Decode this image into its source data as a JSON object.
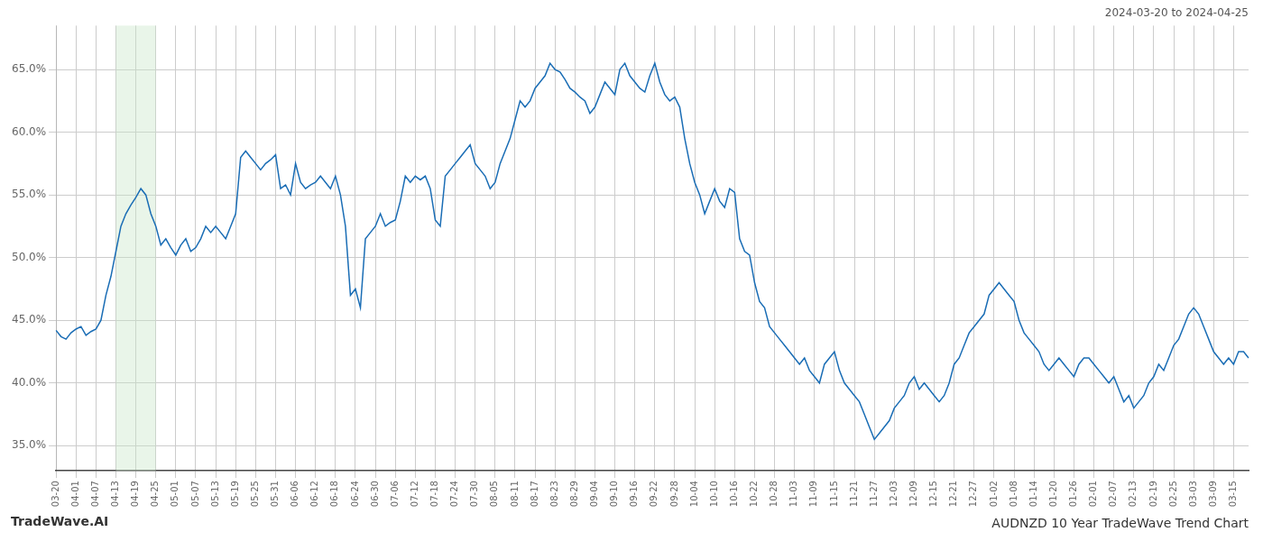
{
  "chart_data": {
    "type": "line",
    "title": "AUDNZD 10 Year TradeWave Trend Chart",
    "subtitle": "2024-03-20 to 2024-04-25",
    "annotations": [
      "TradeWave.AI"
    ],
    "color": "#1a6db5",
    "grid": true,
    "ylim": [
      33.0,
      68.5
    ],
    "yticks": [
      {
        "value": 35.0,
        "label": "35.0%"
      },
      {
        "value": 40.0,
        "label": "40.0%"
      },
      {
        "value": 45.0,
        "label": "45.0%"
      },
      {
        "value": 50.0,
        "label": "50.0%"
      },
      {
        "value": 55.0,
        "label": "55.0%"
      },
      {
        "value": 60.0,
        "label": "60.0%"
      },
      {
        "value": 65.0,
        "label": "65.0%"
      }
    ],
    "shaded_region": {
      "from": "04-13",
      "to": "04-25",
      "color": "#c8e6c9"
    },
    "categories": [
      "03-20",
      null,
      null,
      null,
      "04-01",
      null,
      null,
      null,
      "04-07",
      null,
      null,
      null,
      "04-13",
      null,
      null,
      null,
      "04-19",
      null,
      null,
      null,
      "04-25",
      null,
      null,
      null,
      "05-01",
      null,
      null,
      null,
      "05-07",
      null,
      null,
      null,
      "05-13",
      null,
      null,
      null,
      "05-19",
      null,
      null,
      null,
      "05-25",
      null,
      null,
      null,
      "05-31",
      null,
      null,
      null,
      "06-06",
      null,
      null,
      null,
      "06-12",
      null,
      null,
      null,
      "06-18",
      null,
      null,
      null,
      "06-24",
      null,
      null,
      null,
      "06-30",
      null,
      null,
      null,
      "07-06",
      null,
      null,
      null,
      "07-12",
      null,
      null,
      null,
      "07-18",
      null,
      null,
      null,
      "07-24",
      null,
      null,
      null,
      "07-30",
      null,
      null,
      null,
      "08-05",
      null,
      null,
      null,
      "08-11",
      null,
      null,
      null,
      "08-17",
      null,
      null,
      null,
      "08-23",
      null,
      null,
      null,
      "08-29",
      null,
      null,
      null,
      "09-04",
      null,
      null,
      null,
      "09-10",
      null,
      null,
      null,
      "09-16",
      null,
      null,
      null,
      "09-22",
      null,
      null,
      null,
      "09-28",
      null,
      null,
      null,
      "10-04",
      null,
      null,
      null,
      "10-10",
      null,
      null,
      null,
      "10-16",
      null,
      null,
      null,
      "10-22",
      null,
      null,
      null,
      "10-28",
      null,
      null,
      null,
      "11-03",
      null,
      null,
      null,
      "11-09",
      null,
      null,
      null,
      "11-15",
      null,
      null,
      null,
      "11-21",
      null,
      null,
      null,
      "11-27",
      null,
      null,
      null,
      "12-03",
      null,
      null,
      null,
      "12-09",
      null,
      null,
      null,
      "12-15",
      null,
      null,
      null,
      "12-21",
      null,
      null,
      null,
      "12-27",
      null,
      null,
      null,
      "01-02",
      null,
      null,
      null,
      "01-08",
      null,
      null,
      null,
      "01-14",
      null,
      null,
      null,
      "01-20",
      null,
      null,
      null,
      "01-26",
      null,
      null,
      null,
      "02-01",
      null,
      null,
      null,
      "02-07",
      null,
      null,
      null,
      "02-13",
      null,
      null,
      null,
      "02-19",
      null,
      null,
      null,
      "02-25",
      null,
      null,
      null,
      "03-03",
      null,
      null,
      null,
      "03-09",
      null,
      null,
      null,
      "03-15",
      null,
      null,
      null
    ],
    "values": [
      44.2,
      43.7,
      43.5,
      44.0,
      44.3,
      44.5,
      43.8,
      44.1,
      44.3,
      45.0,
      47.0,
      48.5,
      50.5,
      52.5,
      53.5,
      54.2,
      54.8,
      55.5,
      55.0,
      53.5,
      52.5,
      51.0,
      51.5,
      50.8,
      50.2,
      51.0,
      51.5,
      50.5,
      50.8,
      51.5,
      52.5,
      52.0,
      52.5,
      52.0,
      51.5,
      52.5,
      53.5,
      58.0,
      58.5,
      58.0,
      57.5,
      57.0,
      57.5,
      57.8,
      58.2,
      55.5,
      55.8,
      55.0,
      57.5,
      56.0,
      55.5,
      55.8,
      56.0,
      56.5,
      56.0,
      55.5,
      56.5,
      55.0,
      52.5,
      47.0,
      47.5,
      46.0,
      51.5,
      52.0,
      52.5,
      53.5,
      52.5,
      52.8,
      53.0,
      54.5,
      56.5,
      56.0,
      56.5,
      56.2,
      56.5,
      55.5,
      53.0,
      52.5,
      56.5,
      57.0,
      57.5,
      58.0,
      58.5,
      59.0,
      57.5,
      57.0,
      56.5,
      55.5,
      56.0,
      57.5,
      58.5,
      59.5,
      61.0,
      62.5,
      62.0,
      62.5,
      63.5,
      64.0,
      64.5,
      65.5,
      65.0,
      64.8,
      64.2,
      63.5,
      63.2,
      62.8,
      62.5,
      61.5,
      62.0,
      63.0,
      64.0,
      63.5,
      63.0,
      65.0,
      65.5,
      64.5,
      64.0,
      63.5,
      63.2,
      64.5,
      65.5,
      64.0,
      63.0,
      62.5,
      62.8,
      62.0,
      59.5,
      57.5,
      56.0,
      55.0,
      53.5,
      54.5,
      55.5,
      54.5,
      54.0,
      55.5,
      55.2,
      51.5,
      50.5,
      50.2,
      48.0,
      46.5,
      46.0,
      44.5,
      44.0,
      43.5,
      43.0,
      42.5,
      42.0,
      41.5,
      42.0,
      41.0,
      40.5,
      40.0,
      41.5,
      42.0,
      42.5,
      41.0,
      40.0,
      39.5,
      39.0,
      38.5,
      37.5,
      36.5,
      35.5,
      36.0,
      36.5,
      37.0,
      38.0,
      38.5,
      39.0,
      40.0,
      40.5,
      39.5,
      40.0,
      39.5,
      39.0,
      38.5,
      39.0,
      40.0,
      41.5,
      42.0,
      43.0,
      44.0,
      44.5,
      45.0,
      45.5,
      47.0,
      47.5,
      48.0,
      47.5,
      47.0,
      46.5,
      45.0,
      44.0,
      43.5,
      43.0,
      42.5,
      41.5,
      41.0,
      41.5,
      42.0,
      41.5,
      41.0,
      40.5,
      41.5,
      42.0,
      42.0,
      41.5,
      41.0,
      40.5,
      40.0,
      40.5,
      39.5,
      38.5,
      39.0,
      38.0,
      38.5,
      39.0,
      40.0,
      40.5,
      41.5,
      41.0,
      42.0,
      43.0,
      43.5,
      44.5,
      45.5,
      46.0,
      45.5,
      44.5,
      43.5,
      42.5,
      42.0,
      41.5,
      42.0,
      41.5,
      42.5,
      42.5,
      42.0
    ]
  }
}
